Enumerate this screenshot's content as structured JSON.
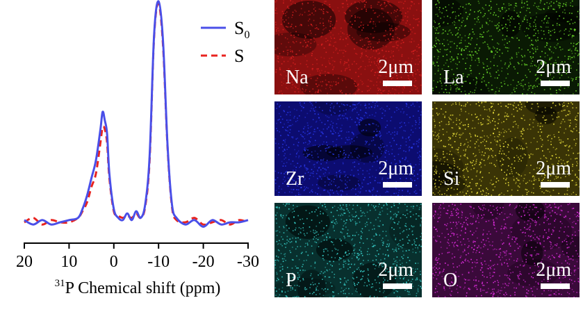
{
  "chart_data": {
    "type": "line",
    "xlabel_sup": "31",
    "xlabel": "P Chemical shift (ppm)",
    "xlim": [
      20,
      -30
    ],
    "xticks": [
      20,
      10,
      0,
      -10,
      -20,
      -30
    ],
    "xtick_labels": [
      "20",
      "10",
      "0",
      "-10",
      "-20",
      "-30"
    ],
    "grid": false,
    "legend_position": "top-right",
    "series": [
      {
        "name": "S0",
        "label_main": "S",
        "label_sub": "0",
        "color": "#4a4fe8",
        "style": "solid",
        "x": [
          20,
          18,
          16,
          14,
          12,
          10,
          8,
          7,
          6,
          5,
          4,
          3,
          2.5,
          2,
          1.5,
          1,
          0,
          -1,
          -2,
          -3,
          -4,
          -5,
          -6,
          -7,
          -8,
          -9,
          -10,
          -11,
          -12,
          -13,
          -14,
          -16,
          -18,
          -20,
          -22,
          -24,
          -26,
          -28,
          -30
        ],
        "y": [
          0.01,
          -0.01,
          0.01,
          -0.01,
          0.0,
          0.01,
          0.02,
          0.06,
          0.12,
          0.2,
          0.28,
          0.42,
          0.5,
          0.46,
          0.4,
          0.22,
          0.06,
          0.02,
          0.01,
          0.04,
          0.01,
          0.05,
          0.02,
          0.08,
          0.3,
          0.85,
          1.0,
          0.82,
          0.35,
          0.08,
          0.02,
          -0.01,
          0.01,
          -0.02,
          0.01,
          -0.01,
          0.0,
          0.0,
          0.01
        ]
      },
      {
        "name": "S",
        "label_main": "S",
        "label_sub": "",
        "color": "#e8231f",
        "style": "dashed",
        "x": [
          20,
          18,
          16,
          14,
          12,
          10,
          8,
          7,
          6,
          5,
          4,
          3,
          2.5,
          2,
          1.5,
          1,
          0,
          -1,
          -2,
          -3,
          -4,
          -5,
          -6,
          -7,
          -8,
          -9,
          -10,
          -11,
          -12,
          -13,
          -14,
          -16,
          -18,
          -20,
          -22,
          -24,
          -26,
          -28,
          -30
        ],
        "y": [
          0.0,
          0.02,
          -0.01,
          0.01,
          0.0,
          0.0,
          0.02,
          0.05,
          0.09,
          0.16,
          0.22,
          0.36,
          0.43,
          0.42,
          0.36,
          0.2,
          0.05,
          0.03,
          0.02,
          0.03,
          0.02,
          0.04,
          0.02,
          0.07,
          0.28,
          0.84,
          0.99,
          0.8,
          0.34,
          0.07,
          0.01,
          0.0,
          0.02,
          -0.01,
          0.0,
          0.01,
          -0.01,
          0.01,
          0.0
        ]
      }
    ]
  },
  "maps": [
    {
      "element": "Na",
      "scale": "2μm",
      "color": "#d82020",
      "base": "#8a1010"
    },
    {
      "element": "La",
      "scale": "2μm",
      "color": "#6ee02a",
      "base": "#0a1a04"
    },
    {
      "element": "Zr",
      "scale": "2μm",
      "color": "#2a3af0",
      "base": "#0c0c70"
    },
    {
      "element": "Si",
      "scale": "2μm",
      "color": "#ece23c",
      "base": "#3a3406"
    },
    {
      "element": "P",
      "scale": "2μm",
      "color": "#3ad6d0",
      "base": "#08302e"
    },
    {
      "element": "O",
      "scale": "2μm",
      "color": "#e62ee6",
      "base": "#3a0a3a"
    }
  ]
}
